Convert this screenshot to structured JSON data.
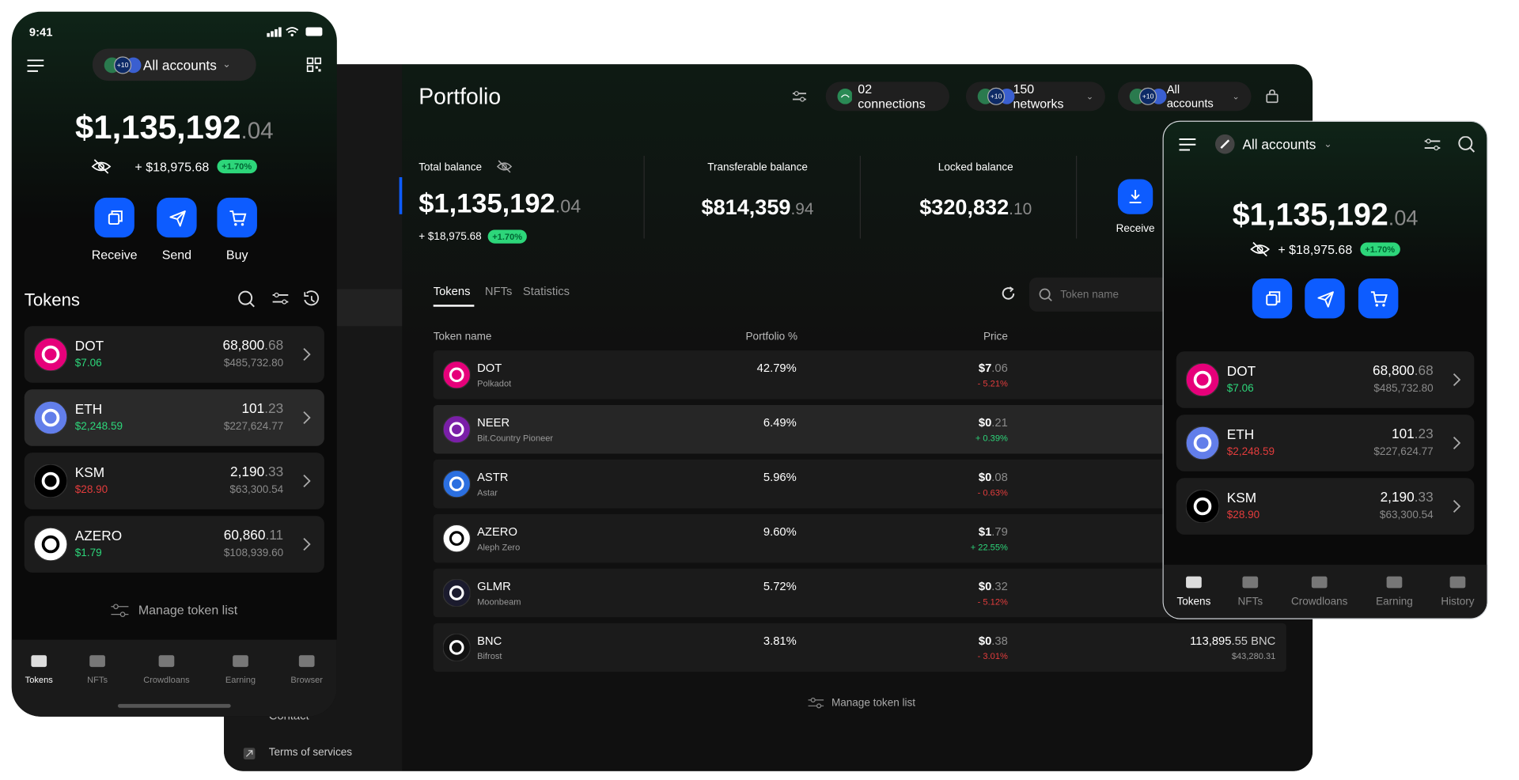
{
  "mobile": {
    "time": "9:41",
    "account": "All accounts",
    "badge": "+10",
    "balance_main": "$1,135,192",
    "balance_dec": ".04",
    "change": "+ $18,975.68",
    "pct": "+1.70%",
    "actions": [
      "Receive",
      "Send",
      "Buy"
    ],
    "tokens_title": "Tokens",
    "tokens": [
      {
        "symbol": "DOT",
        "price": "$7.06",
        "price_color": "#2dd67a",
        "amount_main": "68,800",
        "amount_dec": ".68",
        "value": "$485,732.80",
        "color": "#e6007a"
      },
      {
        "symbol": "ETH",
        "price": "$2,248.59",
        "price_color": "#2dd67a",
        "amount_main": "101",
        "amount_dec": ".23",
        "value": "$227,624.77",
        "color": "#627eea"
      },
      {
        "symbol": "KSM",
        "price": "$28.90",
        "price_color": "#e23c3c",
        "amount_main": "2,190",
        "amount_dec": ".33",
        "value": "$63,300.54",
        "color": "#000000"
      },
      {
        "symbol": "AZERO",
        "price": "$1.79",
        "price_color": "#2dd67a",
        "amount_main": "60,860",
        "amount_dec": ".11",
        "value": "$108,939.60",
        "color": "#ffffff"
      }
    ],
    "manage": "Manage token list",
    "nav": [
      "Tokens",
      "NFTs",
      "Crowdloans",
      "Earning",
      "Browser"
    ]
  },
  "desktop": {
    "sidebar": [
      "Contact",
      "Terms of services"
    ],
    "title": "Portfolio",
    "connections": "02 connections",
    "networks": "150 networks",
    "badge": "+10",
    "accounts": "All accounts",
    "total_label": "Total balance",
    "total_main": "$1,135,192",
    "total_dec": ".04",
    "change": "+ $18,975.68",
    "pct": "+1.70%",
    "transferable_label": "Transferable balance",
    "transferable_main": "$814,359",
    "transferable_dec": ".94",
    "locked_label": "Locked balance",
    "locked_main": "$320,832",
    "locked_dec": ".10",
    "receive": "Receive",
    "tabs": [
      "Tokens",
      "NFTs",
      "Statistics"
    ],
    "search": "Token name",
    "columns": [
      "Token name",
      "Portfolio %",
      "Price"
    ],
    "rows": [
      {
        "symbol": "DOT",
        "name": "Polkadot",
        "pct": "42.79%",
        "price_main": "$7",
        "price_dec": ".06",
        "change": "- 5.21%",
        "color": "#e6007a"
      },
      {
        "symbol": "NEER",
        "name": "Bit.Country Pioneer",
        "pct": "6.49%",
        "price_main": "$0",
        "price_dec": ".21",
        "change": "+ 0.39%",
        "color": "#7a1fa8"
      },
      {
        "symbol": "ASTR",
        "name": "Astar",
        "pct": "5.96%",
        "price_main": "$0",
        "price_dec": ".08",
        "change": "- 0.63%",
        "color": "#2b6fe0"
      },
      {
        "symbol": "AZERO",
        "name": "Aleph Zero",
        "pct": "9.60%",
        "price_main": "$1",
        "price_dec": ".79",
        "change": "+ 22.55%",
        "color": "#ffffff"
      },
      {
        "symbol": "GLMR",
        "name": "Moonbeam",
        "pct": "5.72%",
        "price_main": "$0",
        "price_dec": ".32",
        "change": "- 5.12%",
        "color": "#1b1b2e"
      },
      {
        "symbol": "BNC",
        "name": "Bifrost",
        "pct": "3.81%",
        "price_main": "$0",
        "price_dec": ".38",
        "change": "- 3.01%",
        "color": "#111111",
        "balance_main": "113,895",
        "balance_dec": ".55 BNC",
        "balance_value": "$43,280.31"
      }
    ],
    "manage": "Manage token list"
  },
  "tablet": {
    "account": "All accounts",
    "balance_main": "$1,135,192",
    "balance_dec": ".04",
    "change": "+ $18,975.68",
    "pct": "+1.70%",
    "tokens": [
      {
        "symbol": "DOT",
        "price": "$7.06",
        "price_color": "#2dd67a",
        "amount_main": "68,800",
        "amount_dec": ".68",
        "value": "$485,732.80",
        "color": "#e6007a"
      },
      {
        "symbol": "ETH",
        "price": "$2,248.59",
        "price_color": "#e23c3c",
        "amount_main": "101",
        "amount_dec": ".23",
        "value": "$227,624.77",
        "color": "#627eea"
      },
      {
        "symbol": "KSM",
        "price": "$28.90",
        "price_color": "#e23c3c",
        "amount_main": "2,190",
        "amount_dec": ".33",
        "value": "$63,300.54",
        "color": "#000000"
      }
    ],
    "nav": [
      "Tokens",
      "NFTs",
      "Crowdloans",
      "Earning",
      "History"
    ]
  }
}
